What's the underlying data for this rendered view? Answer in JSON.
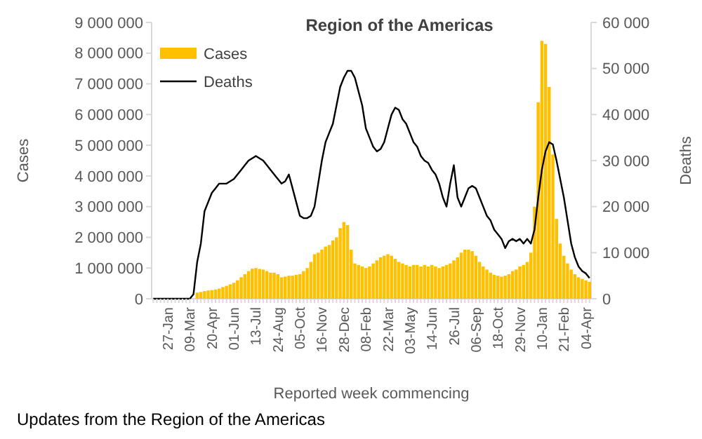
{
  "chart_data": {
    "type": "bar",
    "title": "Region of the Americas",
    "xlabel": "Reported week commencing",
    "ylabel": "Cases",
    "y2label": "Deaths",
    "categories": [
      null,
      null,
      null,
      null,
      "27-Jan",
      null,
      null,
      null,
      null,
      null,
      "09-Mar",
      null,
      null,
      null,
      null,
      null,
      "20-Apr",
      null,
      null,
      null,
      null,
      null,
      "01-Jun",
      null,
      null,
      null,
      null,
      null,
      "13-Jul",
      null,
      null,
      null,
      null,
      null,
      "24-Aug",
      null,
      null,
      null,
      null,
      null,
      "05-Oct",
      null,
      null,
      null,
      null,
      null,
      "16-Nov",
      null,
      null,
      null,
      null,
      null,
      "28-Dec",
      null,
      null,
      null,
      null,
      null,
      "08-Feb",
      null,
      null,
      null,
      null,
      null,
      "22-Mar",
      null,
      null,
      null,
      null,
      null,
      "03-May",
      null,
      null,
      null,
      null,
      null,
      "14-Jun",
      null,
      null,
      null,
      null,
      null,
      "26-Jul",
      null,
      null,
      null,
      null,
      null,
      "06-Sep",
      null,
      null,
      null,
      null,
      null,
      "18-Oct",
      null,
      null,
      null,
      null,
      null,
      "29-Nov",
      null,
      null,
      null,
      null,
      null,
      "10-Jan",
      null,
      null,
      null,
      null,
      null,
      "21-Feb",
      null,
      null,
      null,
      null,
      null,
      "04-Apr",
      null
    ],
    "series": [
      {
        "name": "Cases",
        "color": "#ffc000",
        "values": [
          0,
          0,
          0,
          0,
          0,
          0,
          0,
          0,
          0,
          0,
          0,
          0,
          200000,
          220000,
          250000,
          270000,
          280000,
          300000,
          330000,
          380000,
          420000,
          470000,
          520000,
          600000,
          700000,
          800000,
          900000,
          980000,
          1000000,
          970000,
          950000,
          900000,
          850000,
          850000,
          800000,
          700000,
          720000,
          750000,
          750000,
          780000,
          800000,
          900000,
          1000000,
          1200000,
          1450000,
          1500000,
          1600000,
          1700000,
          1750000,
          1900000,
          2000000,
          2300000,
          2500000,
          2400000,
          1600000,
          1150000,
          1100000,
          1050000,
          1000000,
          1050000,
          1150000,
          1250000,
          1350000,
          1400000,
          1450000,
          1400000,
          1300000,
          1200000,
          1150000,
          1100000,
          1050000,
          1100000,
          1100000,
          1050000,
          1100000,
          1050000,
          1100000,
          1050000,
          1000000,
          1050000,
          1100000,
          1150000,
          1250000,
          1350000,
          1500000,
          1600000,
          1600000,
          1550000,
          1400000,
          1200000,
          1050000,
          950000,
          850000,
          780000,
          750000,
          720000,
          750000,
          800000,
          900000,
          950000,
          1050000,
          1100000,
          1200000,
          1500000,
          3000000,
          6400000,
          8400000,
          8300000,
          6900000,
          4700000,
          2600000,
          1800000,
          1400000,
          1150000,
          950000,
          800000,
          700000,
          650000,
          600000,
          550000
        ]
      },
      {
        "name": "Deaths",
        "type": "line",
        "axis": "y2",
        "color": "#000000",
        "values": [
          0,
          0,
          0,
          0,
          0,
          0,
          0,
          0,
          0,
          0,
          0,
          1000,
          8000,
          12000,
          19000,
          21000,
          23000,
          24000,
          25000,
          25000,
          25000,
          25500,
          26000,
          27000,
          28000,
          29000,
          30000,
          30500,
          31000,
          30500,
          30000,
          29000,
          28000,
          27000,
          26000,
          25000,
          25500,
          27000,
          24000,
          21000,
          18000,
          17500,
          17500,
          18000,
          20000,
          25000,
          30000,
          34000,
          36000,
          38000,
          42000,
          46000,
          48000,
          49500,
          49500,
          48000,
          45000,
          42000,
          37000,
          35000,
          33000,
          32000,
          32500,
          34000,
          37000,
          40000,
          41500,
          41000,
          39000,
          38000,
          36000,
          34000,
          33000,
          31000,
          30000,
          29500,
          28000,
          27000,
          25000,
          22000,
          20000,
          25000,
          29000,
          22000,
          20000,
          22000,
          24000,
          24500,
          24000,
          22000,
          20000,
          18000,
          17000,
          15000,
          14000,
          13000,
          11000,
          12500,
          13000,
          12500,
          13000,
          12000,
          13000,
          12000,
          15000,
          22000,
          28000,
          32000,
          34000,
          33500,
          30000,
          26000,
          22000,
          17000,
          12000,
          9000,
          7000,
          6000,
          5500,
          4500
        ]
      }
    ],
    "ylim": [
      0,
      9000000
    ],
    "yticks": [
      {
        "value": 0,
        "label": "0"
      },
      {
        "value": 1000000,
        "label": "1 000 000"
      },
      {
        "value": 2000000,
        "label": "2 000 000"
      },
      {
        "value": 3000000,
        "label": "3 000 000"
      },
      {
        "value": 4000000,
        "label": "4 000 000"
      },
      {
        "value": 5000000,
        "label": "5 000 000"
      },
      {
        "value": 6000000,
        "label": "6 000 000"
      },
      {
        "value": 7000000,
        "label": "7 000 000"
      },
      {
        "value": 8000000,
        "label": "8 000 000"
      },
      {
        "value": 9000000,
        "label": "9 000 000"
      }
    ],
    "y2lim": [
      0,
      60000
    ],
    "y2ticks": [
      {
        "value": 0,
        "label": "0"
      },
      {
        "value": 10000,
        "label": "10 000"
      },
      {
        "value": 20000,
        "label": "20 000"
      },
      {
        "value": 30000,
        "label": "30 000"
      },
      {
        "value": 40000,
        "label": "40 000"
      },
      {
        "value": 50000,
        "label": "50 000"
      },
      {
        "value": 60000,
        "label": "60 000"
      }
    ],
    "legend": "top left",
    "grid": false,
    "annotations": [
      "Updates from the Region of the Americas"
    ]
  }
}
